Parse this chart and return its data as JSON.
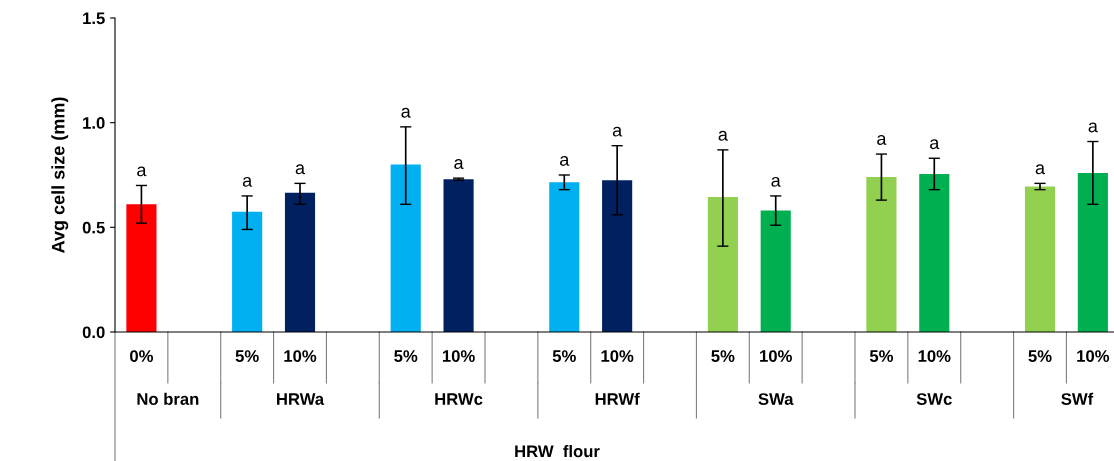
{
  "chart_data": {
    "type": "bar",
    "ylabel": "Avg cell size (mm)",
    "xlabel": "HRW  flour",
    "categories": [
      "0%",
      null,
      "5%",
      "10%",
      null,
      "5%",
      "10%",
      null,
      "5%",
      "10%",
      null,
      "5%",
      "10%",
      null,
      "5%",
      "10%",
      null,
      "5%",
      "10%"
    ],
    "values": [
      0.61,
      null,
      0.575,
      0.665,
      null,
      0.8,
      0.73,
      null,
      0.715,
      0.725,
      null,
      0.645,
      0.58,
      null,
      0.74,
      0.755,
      null,
      0.695,
      0.76
    ],
    "errors": [
      [
        0.52,
        0.7
      ],
      null,
      [
        0.49,
        0.65
      ],
      [
        0.61,
        0.71
      ],
      null,
      [
        0.61,
        0.98
      ],
      [
        0.725,
        0.735
      ],
      null,
      [
        0.68,
        0.75
      ],
      [
        0.56,
        0.89
      ],
      null,
      [
        0.41,
        0.87
      ],
      [
        0.51,
        0.65
      ],
      null,
      [
        0.63,
        0.85
      ],
      [
        0.68,
        0.83
      ],
      null,
      [
        0.68,
        0.71
      ],
      [
        0.61,
        0.91
      ]
    ],
    "colors": [
      "#ff0000",
      null,
      "#00b0f0",
      "#002060",
      null,
      "#00b0f0",
      "#002060",
      null,
      "#00b0f0",
      "#002060",
      null,
      "#92d050",
      "#00b050",
      null,
      "#92d050",
      "#00b050",
      null,
      "#92d050",
      "#00b050"
    ],
    "value_labels": [
      "a",
      null,
      "a",
      "a",
      null,
      "a",
      "a",
      null,
      "a",
      "a",
      null,
      "a",
      "a",
      null,
      "a",
      "a",
      null,
      "a",
      "a"
    ],
    "annotations": [
      "No bran",
      "HRWa",
      "HRWc",
      "HRWf",
      "SWa",
      "SWc",
      "SWf"
    ],
    "ylim": [
      0,
      1.5
    ],
    "yticks": [
      {
        "value": 0,
        "label": "0.0"
      },
      {
        "value": 0.5,
        "label": "0.5"
      },
      {
        "value": 1,
        "label": "1.0"
      },
      {
        "value": 1.5,
        "label": "1.5"
      }
    ],
    "grid": false,
    "legend": false
  }
}
